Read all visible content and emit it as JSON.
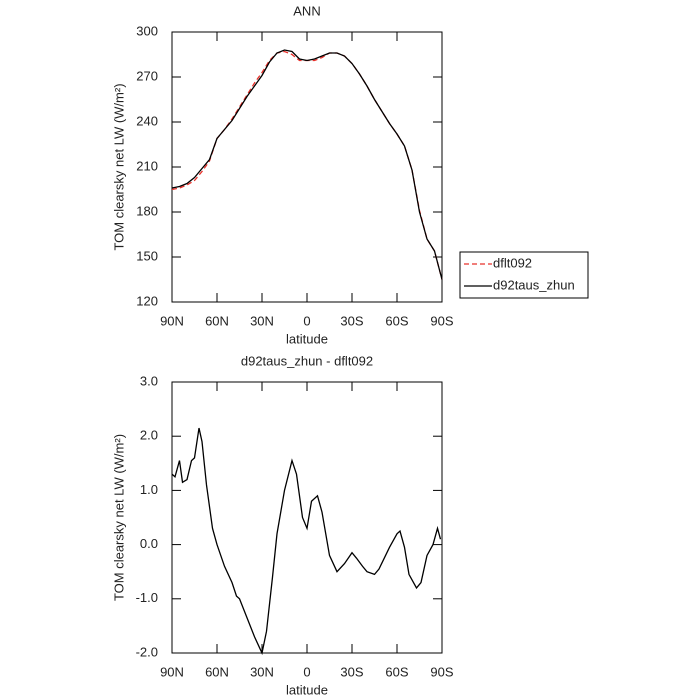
{
  "chart_data": [
    {
      "type": "line",
      "title": "ANN",
      "xlabel": "latitude",
      "ylabel": "TOM clearsky net LW (W/m²)",
      "xlim": [
        90,
        -90
      ],
      "xticks": [
        {
          "value": 90,
          "label": "90N"
        },
        {
          "value": 60,
          "label": "60N"
        },
        {
          "value": 30,
          "label": "30N"
        },
        0,
        {
          "value": -30,
          "label": "30S"
        },
        {
          "value": -60,
          "label": "60S"
        },
        {
          "value": -90,
          "label": "90S"
        }
      ],
      "ylim": [
        120,
        300
      ],
      "yticks": [
        120,
        150,
        180,
        210,
        240,
        270,
        300
      ],
      "legend": "right",
      "x": [
        90,
        85,
        80,
        75,
        70,
        65,
        60,
        55,
        50,
        45,
        40,
        35,
        30,
        25,
        20,
        15,
        10,
        5,
        0,
        -5,
        -10,
        -15,
        -20,
        -25,
        -30,
        -35,
        -40,
        -45,
        -50,
        -55,
        -60,
        -65,
        -70,
        -75,
        -80,
        -85,
        -90
      ],
      "series": [
        {
          "name": "dflt092",
          "color": "#e8302a",
          "dash": true,
          "values": [
            195,
            196,
            198,
            201,
            207,
            214,
            229,
            235,
            242,
            250,
            258,
            266,
            273,
            281,
            286,
            287,
            285,
            281,
            281,
            281,
            283,
            286,
            286,
            284,
            279,
            272,
            264,
            255,
            247,
            239,
            232,
            224,
            208,
            181,
            162,
            154,
            135
          ]
        },
        {
          "name": "d92taus_zhun",
          "color": "#000000",
          "dash": false,
          "values": [
            196,
            197,
            199,
            203,
            209,
            215,
            229,
            235,
            241,
            249,
            257,
            264,
            271,
            280,
            286,
            288,
            287,
            282,
            281,
            282,
            284,
            286,
            286,
            284,
            279,
            272,
            264,
            255,
            247,
            239,
            232,
            224,
            208,
            180,
            162,
            154,
            135
          ]
        }
      ]
    },
    {
      "type": "line",
      "title": "d92taus_zhun - dflt092",
      "xlabel": "latitude",
      "ylabel": "TOM clearsky net LW (W/m²)",
      "xlim": [
        90,
        -90
      ],
      "xticks": [
        {
          "value": 90,
          "label": "90N"
        },
        {
          "value": 60,
          "label": "60N"
        },
        {
          "value": 30,
          "label": "30N"
        },
        0,
        {
          "value": -30,
          "label": "30S"
        },
        {
          "value": -60,
          "label": "60S"
        },
        {
          "value": -90,
          "label": "90S"
        }
      ],
      "ylim": [
        -2,
        3
      ],
      "yticks": [
        {
          "value": -2,
          "label": "-2.0"
        },
        {
          "value": -1,
          "label": "-1.0"
        },
        {
          "value": 0,
          "label": "0.0"
        },
        {
          "value": 1,
          "label": "1.0"
        },
        {
          "value": 2,
          "label": "2.0"
        },
        {
          "value": 3,
          "label": "3.0"
        }
      ],
      "x": [
        90,
        88,
        85,
        83,
        80,
        77,
        75,
        72,
        70,
        67,
        63,
        60,
        55,
        50,
        47,
        45,
        40,
        35,
        30,
        27,
        23,
        20,
        15,
        10,
        7,
        3,
        0,
        -3,
        -7,
        -10,
        -15,
        -20,
        -25,
        -30,
        -33,
        -37,
        -40,
        -45,
        -48,
        -55,
        -60,
        -62,
        -65,
        -68,
        -73,
        -76,
        -80,
        -84,
        -87,
        -89
      ],
      "series": [
        {
          "color": "#000000",
          "dash": false,
          "values": [
            1.3,
            1.25,
            1.55,
            1.15,
            1.2,
            1.55,
            1.6,
            2.15,
            1.9,
            1.1,
            0.3,
            0,
            -0.4,
            -0.7,
            -0.95,
            -1.0,
            -1.35,
            -1.7,
            -2.0,
            -1.6,
            -0.6,
            0.2,
            1.0,
            1.55,
            1.3,
            0.5,
            0.3,
            0.8,
            0.9,
            0.6,
            -0.2,
            -0.5,
            -0.35,
            -0.15,
            -0.25,
            -0.4,
            -0.5,
            -0.55,
            -0.45,
            -0.05,
            0.2,
            0.25,
            -0.05,
            -0.55,
            -0.8,
            -0.7,
            -0.2,
            0.0,
            0.3,
            0.1
          ]
        }
      ]
    }
  ]
}
